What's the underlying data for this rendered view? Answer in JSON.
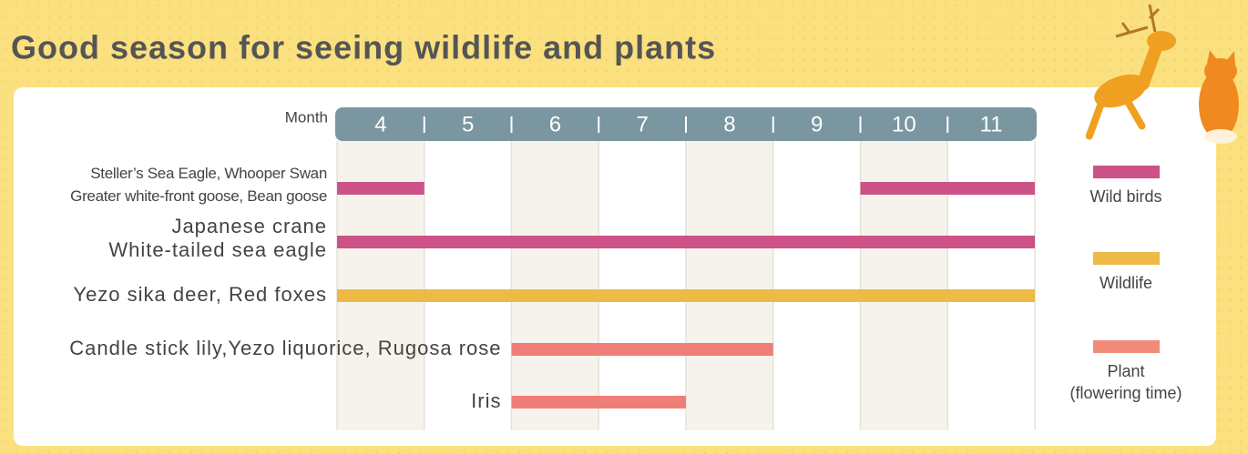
{
  "chart_data": {
    "type": "gantt",
    "title": "Good season for seeing wildlife and plants",
    "x_label": "Month",
    "x": [
      4,
      5,
      6,
      7,
      8,
      9,
      10,
      11
    ],
    "rows": [
      {
        "label": [
          "Steller’s Sea Eagle, Whooper Swan",
          "Greater white-front goose, Bean goose"
        ],
        "color": "#cc5288",
        "bars": [
          {
            "start": 4,
            "end": 4
          },
          {
            "start": 10,
            "end": 11
          }
        ]
      },
      {
        "label": [
          "Japanese crane",
          "White-tailed sea eagle"
        ],
        "color": "#cc5288",
        "bars": [
          {
            "start": 4,
            "end": 11
          }
        ]
      },
      {
        "label": [
          "Yezo sika deer, Red foxes"
        ],
        "color": "#edbb45",
        "bars": [
          {
            "start": 4,
            "end": 11
          }
        ]
      },
      {
        "label": [
          "Candle stick lily,Yezo liquorice, Rugosa rose"
        ],
        "color": "#ef7e78",
        "bars": [
          {
            "start": 6,
            "end": 8
          }
        ]
      },
      {
        "label": [
          "Iris"
        ],
        "color": "#ef7e78",
        "bars": [
          {
            "start": 6,
            "end": 7
          }
        ]
      }
    ],
    "series": [
      {
        "name": [
          "Wild birds"
        ],
        "color": "#cc5288"
      },
      {
        "name": [
          "Wildlife"
        ],
        "color": "#edbb45"
      },
      {
        "name": [
          "Plant",
          "(flowering time)"
        ],
        "color": "#f28a7c"
      }
    ]
  }
}
